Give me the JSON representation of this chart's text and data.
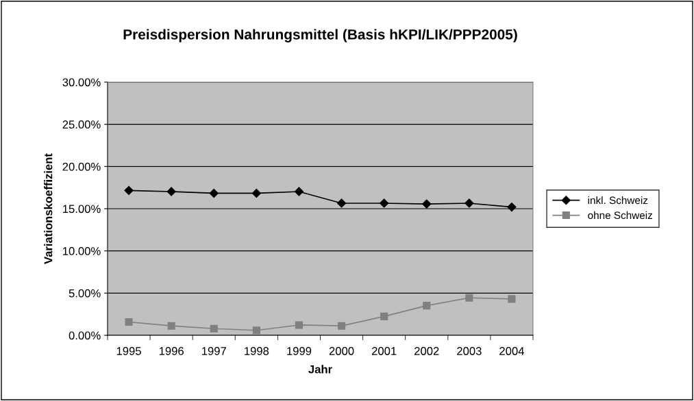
{
  "chart_data": {
    "type": "line",
    "title": "Preisdispersion Nahrungsmittel (Basis hKPI/LIK/PPP2005)",
    "xlabel": "Jahr",
    "ylabel": "Variationskoeffizient",
    "categories": [
      "1995",
      "1996",
      "1997",
      "1998",
      "1999",
      "2000",
      "2001",
      "2002",
      "2003",
      "2004"
    ],
    "series": [
      {
        "name": "inkl. Schweiz",
        "color": "#000000",
        "marker": "diamond",
        "values": [
          17.16,
          17.03,
          16.83,
          16.83,
          17.03,
          15.65,
          15.65,
          15.56,
          15.65,
          15.2
        ]
      },
      {
        "name": "ohne Schweiz",
        "color": "#808080",
        "marker": "square",
        "values": [
          1.58,
          1.12,
          0.79,
          0.59,
          1.22,
          1.12,
          2.24,
          3.52,
          4.44,
          4.31
        ]
      }
    ],
    "ylim": [
      0,
      30
    ],
    "yticks": [
      {
        "value": 0,
        "label": "0.00%"
      },
      {
        "value": 5,
        "label": "5.00%"
      },
      {
        "value": 10,
        "label": "10.00%"
      },
      {
        "value": 15,
        "label": "15.00%"
      },
      {
        "value": 20,
        "label": "20.00%"
      },
      {
        "value": 25,
        "label": "25.00%"
      },
      {
        "value": 30,
        "label": "30.00%"
      }
    ],
    "grid": "y",
    "legend": "right"
  }
}
